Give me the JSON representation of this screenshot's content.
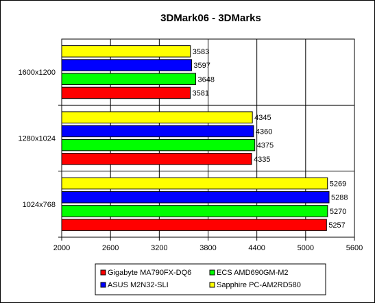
{
  "chart_data": {
    "type": "bar",
    "orientation": "horizontal",
    "title": "3DMark06 - 3DMarks",
    "categories": [
      "1600x1200",
      "1280x1024",
      "1024x768"
    ],
    "series": [
      {
        "name": "Sapphire PC-AM2RD580",
        "color": "#ffff00",
        "values": [
          3583,
          4345,
          5269
        ]
      },
      {
        "name": "ASUS M2N32-SLI",
        "color": "#0000ff",
        "values": [
          3597,
          4360,
          5288
        ]
      },
      {
        "name": "ECS AMD690GM-M2",
        "color": "#00ff00",
        "values": [
          3648,
          4375,
          5270
        ]
      },
      {
        "name": "Gigabyte MA790FX-DQ6",
        "color": "#ff0000",
        "values": [
          3581,
          4335,
          5257
        ]
      }
    ],
    "xlim": [
      2000,
      5600
    ],
    "xticks": [
      2000,
      2600,
      3200,
      3800,
      4400,
      5000,
      5600
    ],
    "grid": true,
    "legend_position": "bottom",
    "legend_order": [
      "Gigabyte MA790FX-DQ6",
      "ECS AMD690GM-M2",
      "ASUS M2N32-SLI",
      "Sapphire PC-AM2RD580"
    ]
  }
}
